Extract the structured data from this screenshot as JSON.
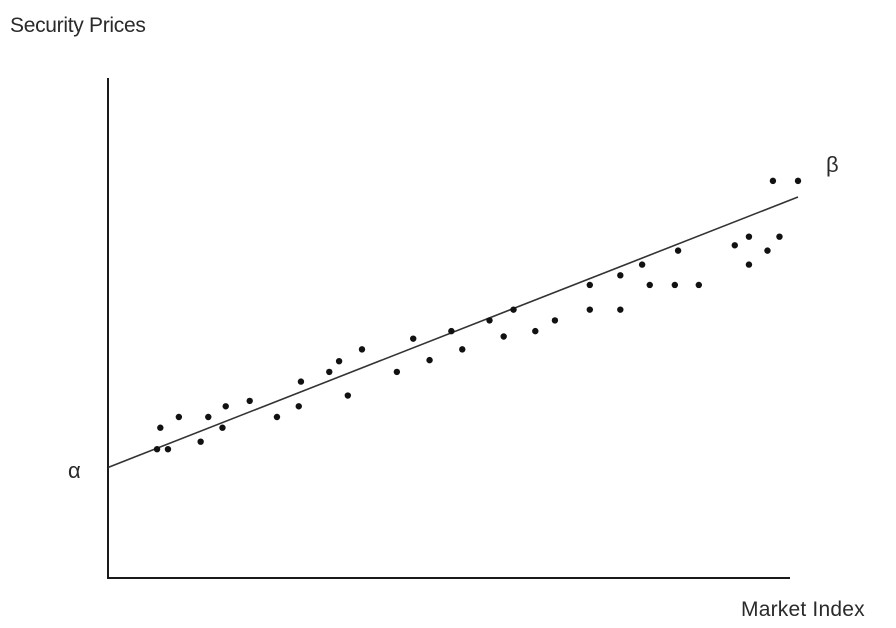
{
  "chart_data": {
    "type": "scatter",
    "ylabel": "Security Prices",
    "xlabel": "Market Index",
    "axes": {
      "show_ticks": false,
      "grid": false,
      "line_color": "#1a1a1a"
    },
    "regression_line": {
      "intercept_label": "α",
      "slope_label": "β",
      "points": [
        [
          0.0,
          1.03
        ],
        [
          6.33,
          3.55
        ]
      ],
      "color": "#333333"
    },
    "xlim": [
      0,
      6.33
    ],
    "ylim": [
      0,
      4.5
    ],
    "point_color": "#111111",
    "points": [
      {
        "x": 0.45,
        "y": 1.2
      },
      {
        "x": 0.55,
        "y": 1.2
      },
      {
        "x": 0.48,
        "y": 1.4
      },
      {
        "x": 0.65,
        "y": 1.5
      },
      {
        "x": 0.85,
        "y": 1.27
      },
      {
        "x": 0.92,
        "y": 1.5
      },
      {
        "x": 1.05,
        "y": 1.4
      },
      {
        "x": 1.08,
        "y": 1.6
      },
      {
        "x": 1.3,
        "y": 1.65
      },
      {
        "x": 1.55,
        "y": 1.5
      },
      {
        "x": 1.75,
        "y": 1.6
      },
      {
        "x": 1.77,
        "y": 1.83
      },
      {
        "x": 2.03,
        "y": 1.92
      },
      {
        "x": 2.12,
        "y": 2.02
      },
      {
        "x": 2.2,
        "y": 1.7
      },
      {
        "x": 2.33,
        "y": 2.13
      },
      {
        "x": 2.65,
        "y": 1.92
      },
      {
        "x": 2.8,
        "y": 2.23
      },
      {
        "x": 2.95,
        "y": 2.03
      },
      {
        "x": 3.15,
        "y": 2.3
      },
      {
        "x": 3.25,
        "y": 2.13
      },
      {
        "x": 3.5,
        "y": 2.4
      },
      {
        "x": 3.63,
        "y": 2.25
      },
      {
        "x": 3.72,
        "y": 2.5
      },
      {
        "x": 3.92,
        "y": 2.3
      },
      {
        "x": 4.1,
        "y": 2.4
      },
      {
        "x": 4.42,
        "y": 2.5
      },
      {
        "x": 4.42,
        "y": 2.73
      },
      {
        "x": 4.7,
        "y": 2.5
      },
      {
        "x": 4.7,
        "y": 2.82
      },
      {
        "x": 4.9,
        "y": 2.92
      },
      {
        "x": 4.97,
        "y": 2.73
      },
      {
        "x": 5.2,
        "y": 2.73
      },
      {
        "x": 5.23,
        "y": 3.05
      },
      {
        "x": 5.42,
        "y": 2.73
      },
      {
        "x": 5.75,
        "y": 3.1
      },
      {
        "x": 5.88,
        "y": 3.18
      },
      {
        "x": 5.88,
        "y": 2.92
      },
      {
        "x": 6.05,
        "y": 3.05
      },
      {
        "x": 6.16,
        "y": 3.18
      },
      {
        "x": 6.1,
        "y": 3.7
      },
      {
        "x": 6.33,
        "y": 3.7
      }
    ]
  }
}
